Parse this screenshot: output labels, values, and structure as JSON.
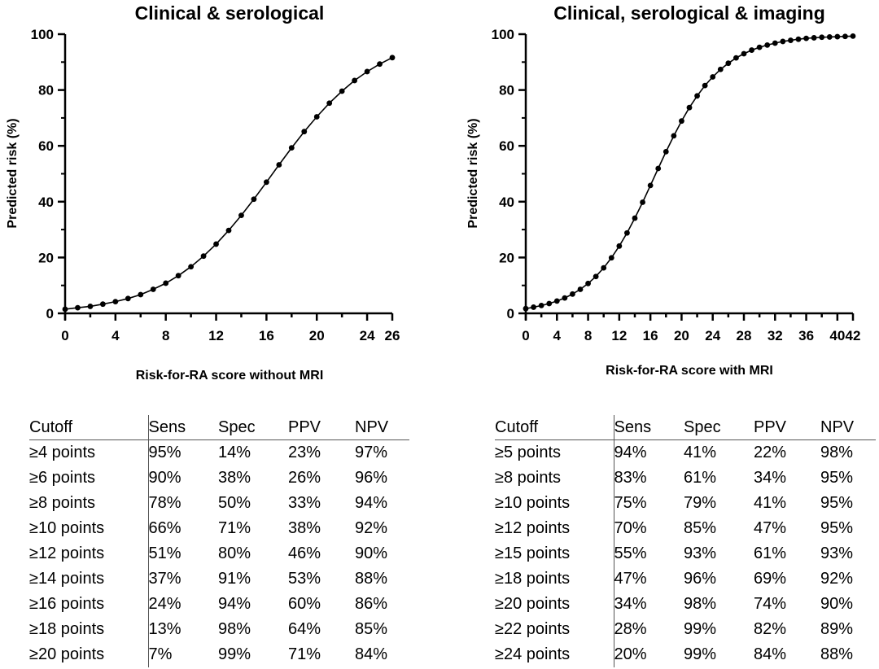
{
  "charts": [
    {
      "title": "Clinical & serological",
      "xlabel": "Risk-for-RA score without MRI",
      "ylabel": "Predicted risk  (%)",
      "xticks": [
        "0",
        "4",
        "8",
        "12",
        "16",
        "20",
        "24",
        "26"
      ],
      "yticks": [
        "0",
        "20",
        "40",
        "60",
        "80",
        "100"
      ]
    },
    {
      "title": "Clinical, serological & imaging",
      "xlabel": "Risk-for-RA score with MRI",
      "ylabel": "Predicted risk  (%)",
      "xticks": [
        "0",
        "4",
        "8",
        "12",
        "16",
        "20",
        "24",
        "28",
        "32",
        "36",
        "40",
        "42"
      ],
      "yticks": [
        "0",
        "20",
        "40",
        "60",
        "80",
        "100"
      ]
    }
  ],
  "chart_data": [
    {
      "type": "line",
      "title": "Clinical & serological",
      "xlabel": "Risk-for-RA score without MRI",
      "ylabel": "Predicted risk  (%)",
      "xlim": [
        0,
        26
      ],
      "ylim": [
        0,
        100
      ],
      "x": [
        0,
        1,
        2,
        3,
        4,
        5,
        6,
        7,
        8,
        9,
        10,
        11,
        12,
        13,
        14,
        15,
        16,
        17,
        18,
        19,
        20,
        21,
        22,
        23,
        24,
        25,
        26
      ],
      "y": [
        1.5,
        2.0,
        2.5,
        3.3,
        4.2,
        5.3,
        6.7,
        8.6,
        10.8,
        13.5,
        16.7,
        20.5,
        24.8,
        29.7,
        35.1,
        40.9,
        47.0,
        53.2,
        59.3,
        65.1,
        70.4,
        75.3,
        79.6,
        83.4,
        86.6,
        89.3,
        91.6
      ]
    },
    {
      "type": "line",
      "title": "Clinical, serological & imaging",
      "xlabel": "Risk-for-RA score with MRI",
      "ylabel": "Predicted risk  (%)",
      "xlim": [
        0,
        42
      ],
      "ylim": [
        0,
        100
      ],
      "x": [
        0,
        1,
        2,
        3,
        4,
        5,
        6,
        7,
        8,
        9,
        10,
        11,
        12,
        13,
        14,
        15,
        16,
        17,
        18,
        19,
        20,
        21,
        22,
        23,
        24,
        25,
        26,
        27,
        28,
        29,
        30,
        31,
        32,
        33,
        34,
        35,
        36,
        37,
        38,
        39,
        40,
        41,
        42
      ],
      "y": [
        1.7,
        2.2,
        2.8,
        3.5,
        4.4,
        5.5,
        6.9,
        8.6,
        10.7,
        13.2,
        16.3,
        19.9,
        24.1,
        28.8,
        34.1,
        39.8,
        45.8,
        51.9,
        57.9,
        63.6,
        68.9,
        73.7,
        77.9,
        81.6,
        84.7,
        87.4,
        89.6,
        91.5,
        93.0,
        94.3,
        95.3,
        96.1,
        96.8,
        97.4,
        97.8,
        98.2,
        98.5,
        98.7,
        98.9,
        99.0,
        99.1,
        99.2,
        99.3
      ]
    }
  ],
  "tables": [
    {
      "headers": [
        "Cutoff",
        "Sens",
        "Spec",
        "PPV",
        "NPV"
      ],
      "rows": [
        [
          "≥4 points",
          "95%",
          "14%",
          "23%",
          "97%"
        ],
        [
          "≥6 points",
          "90%",
          "38%",
          "26%",
          "96%"
        ],
        [
          "≥8 points",
          "78%",
          "50%",
          "33%",
          "94%"
        ],
        [
          "≥10 points",
          "66%",
          "71%",
          "38%",
          "92%"
        ],
        [
          "≥12 points",
          "51%",
          "80%",
          "46%",
          "90%"
        ],
        [
          "≥14 points",
          "37%",
          "91%",
          "53%",
          "88%"
        ],
        [
          "≥16 points",
          "24%",
          "94%",
          "60%",
          "86%"
        ],
        [
          "≥18 points",
          "13%",
          "98%",
          "64%",
          "85%"
        ],
        [
          "≥20 points",
          "7%",
          "99%",
          "71%",
          "84%"
        ]
      ]
    },
    {
      "headers": [
        "Cutoff",
        "Sens",
        "Spec",
        "PPV",
        "NPV"
      ],
      "rows": [
        [
          "≥5 points",
          "94%",
          "41%",
          "22%",
          "98%"
        ],
        [
          "≥8 points",
          "83%",
          "61%",
          "34%",
          "95%"
        ],
        [
          "≥10 points",
          "75%",
          "79%",
          "41%",
          "95%"
        ],
        [
          "≥12 points",
          "70%",
          "85%",
          "47%",
          "95%"
        ],
        [
          "≥15 points",
          "55%",
          "93%",
          "61%",
          "93%"
        ],
        [
          "≥18 points",
          "47%",
          "96%",
          "69%",
          "92%"
        ],
        [
          "≥20 points",
          "34%",
          "98%",
          "74%",
          "90%"
        ],
        [
          "≥22 points",
          "28%",
          "99%",
          "82%",
          "89%"
        ],
        [
          "≥24 points",
          "20%",
          "99%",
          "84%",
          "88%"
        ]
      ]
    }
  ],
  "colors": {
    "line": "#000000",
    "axis": "#000000",
    "rule": "#555555"
  }
}
